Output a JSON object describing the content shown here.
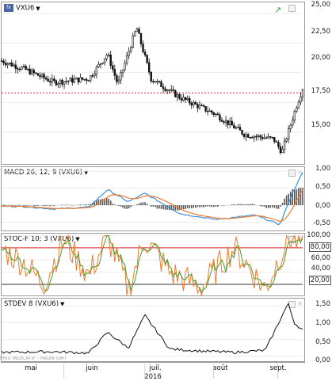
{
  "panels": {
    "price": {
      "title": "VXU6",
      "ticks": [
        "25,00",
        "22,50",
        "20,00",
        "17,50",
        "15,00"
      ],
      "tick_values": [
        25,
        22.5,
        20,
        17.5,
        15
      ],
      "ylim": [
        12.5,
        25.2
      ],
      "ref_line": 18.3,
      "colors": {
        "candle": "#111111",
        "ref": "#d62728"
      }
    },
    "macd": {
      "title": "MACD 26; 12; 9 (VXU6)",
      "ticks": [
        "1,00",
        "0,50",
        "0,00",
        "-0,50"
      ],
      "tick_values": [
        1,
        0.5,
        0,
        -0.5
      ],
      "ylim": [
        -0.72,
        1.05
      ],
      "colors": {
        "macd": "#3b8fd9",
        "signal": "#f07a2b",
        "hist": "#555555"
      }
    },
    "stoch": {
      "title": "STOC-F 10; 3 (VXU6)",
      "ticks": [
        "100,00",
        "80,00",
        "60,00",
        "40,00",
        "20,00"
      ],
      "tick_values": [
        100,
        80,
        60,
        40,
        20
      ],
      "boxed_ticks": [
        "80,00",
        "20,00"
      ],
      "ylim": [
        3,
        102
      ],
      "levels": {
        "upper": 80,
        "lower": 20
      },
      "colors": {
        "k": "#f07a2b",
        "d": "#4c9a2a",
        "upper": "#d62728",
        "lower": "#333333"
      }
    },
    "stdev": {
      "title": "STDEV 8 (VXU6)",
      "ticks": [
        "1,50",
        "1,00",
        "0,50",
        "0,00"
      ],
      "tick_values": [
        1.5,
        1.0,
        0.5,
        0.0
      ],
      "ylim": [
        -0.12,
        1.65
      ],
      "colors": {
        "line": "#111111"
      }
    }
  },
  "x_axis": {
    "months": [
      "mai",
      "juin",
      "juil.",
      "août",
      "sept."
    ],
    "year": "2016"
  },
  "watermark": "PRIX INDICATIF - Heure GMT",
  "icons": {
    "title_icon": "indicator-icon",
    "trend": "trend-arrow-icon",
    "maximize": "maximize-icon",
    "close": "close-icon"
  },
  "chart_data": {
    "type": "line",
    "x_range": [
      "2016-04-20",
      "2016-09-12"
    ],
    "series": [
      {
        "name": "VXU6",
        "x": [
          "2016-04-20",
          "2016-05-01",
          "2016-05-15",
          "2016-06-01",
          "2016-06-10",
          "2016-06-15",
          "2016-06-24",
          "2016-07-01",
          "2016-07-15",
          "2016-08-01",
          "2016-08-15",
          "2016-08-29",
          "2016-09-02",
          "2016-09-09",
          "2016-09-12"
        ],
        "values": [
          21.0,
          20.3,
          19.2,
          19.5,
          21.6,
          19.0,
          23.8,
          19.5,
          17.9,
          16.5,
          14.8,
          14.4,
          13.3,
          17.2,
          18.7
        ]
      },
      {
        "name": "MACD 26; 12; 9 (VXU6)",
        "x": [
          "2016-04-20",
          "2016-05-01",
          "2016-05-15",
          "2016-06-01",
          "2016-06-10",
          "2016-06-20",
          "2016-06-28",
          "2016-07-15",
          "2016-08-01",
          "2016-08-20",
          "2016-09-01",
          "2016-09-07",
          "2016-09-12"
        ],
        "values": [
          -0.02,
          -0.04,
          -0.11,
          -0.06,
          0.46,
          0.1,
          0.35,
          -0.25,
          -0.42,
          -0.29,
          -0.57,
          0.35,
          0.96
        ]
      },
      {
        "name": "STOC-F 10; 3 (VXU6)",
        "x": [
          "2016-04-20",
          "2016-05-01",
          "2016-05-10",
          "2016-05-20",
          "2016-06-01",
          "2016-06-10",
          "2016-06-20",
          "2016-06-28",
          "2016-07-10",
          "2016-07-25",
          "2016-08-10",
          "2016-08-25",
          "2016-09-05",
          "2016-09-12"
        ],
        "values": [
          78,
          55,
          20,
          92,
          35,
          98,
          12,
          95,
          40,
          15,
          80,
          12,
          97,
          88
        ]
      },
      {
        "name": "STDEV 8 (VXU6)",
        "x": [
          "2016-04-20",
          "2016-05-15",
          "2016-06-01",
          "2016-06-10",
          "2016-06-20",
          "2016-06-28",
          "2016-07-10",
          "2016-07-25",
          "2016-08-10",
          "2016-08-25",
          "2016-09-05",
          "2016-09-08",
          "2016-09-12"
        ],
        "values": [
          0.12,
          0.14,
          0.1,
          0.72,
          0.25,
          1.22,
          0.22,
          0.16,
          0.12,
          0.18,
          1.58,
          1.0,
          0.78
        ]
      }
    ]
  }
}
